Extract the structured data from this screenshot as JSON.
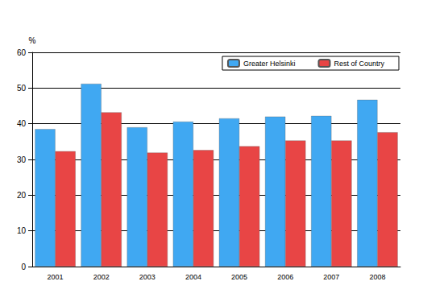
{
  "chart_data": {
    "type": "bar",
    "ylabel": "%",
    "categories": [
      "2001",
      "2002",
      "2003",
      "2004",
      "2005",
      "2006",
      "2007",
      "2008"
    ],
    "series": [
      {
        "name": "Greater Helsinki",
        "color": "#40a8f2",
        "values": [
          38.5,
          51.2,
          39.0,
          40.6,
          41.5,
          42.0,
          42.2,
          46.7
        ]
      },
      {
        "name": "Rest of Country",
        "color": "#e84545",
        "values": [
          32.3,
          43.2,
          31.9,
          32.6,
          33.7,
          35.3,
          35.3,
          37.6
        ]
      }
    ],
    "ylim": [
      0,
      60
    ],
    "yticks": [
      0,
      10,
      20,
      30,
      40,
      50,
      60
    ],
    "grid": true,
    "legend": "upper right"
  }
}
